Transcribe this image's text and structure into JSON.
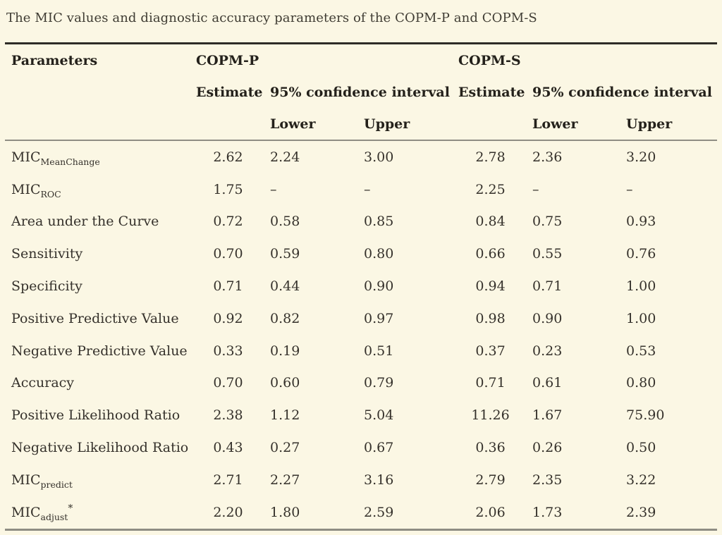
{
  "title": "The MIC values and diagnostic accuracy parameters of the COPM-P and COPM-S",
  "table": {
    "header": {
      "parameters": "Parameters",
      "group_p": "COPM-P",
      "group_s": "COPM-S",
      "estimate": "Estimate",
      "ci": "95% confidence interval",
      "lower": "Lower",
      "upper": "Upper"
    },
    "rows": [
      {
        "param": {
          "base": "MIC",
          "sub": "MeanChange",
          "sup": ""
        },
        "values": [
          "2.62",
          "2.24",
          "3.00",
          "2.78",
          "2.36",
          "3.20"
        ]
      },
      {
        "param": {
          "base": "MIC",
          "sub": "ROC",
          "sup": ""
        },
        "values": [
          "1.75",
          "–",
          "–",
          "2.25",
          "–",
          "–"
        ]
      },
      {
        "param": {
          "base": "Area under the Curve",
          "sub": "",
          "sup": ""
        },
        "values": [
          "0.72",
          "0.58",
          "0.85",
          "0.84",
          "0.75",
          "0.93"
        ]
      },
      {
        "param": {
          "base": "Sensitivity",
          "sub": "",
          "sup": ""
        },
        "values": [
          "0.70",
          "0.59",
          "0.80",
          "0.66",
          "0.55",
          "0.76"
        ]
      },
      {
        "param": {
          "base": "Specificity",
          "sub": "",
          "sup": ""
        },
        "values": [
          "0.71",
          "0.44",
          "0.90",
          "0.94",
          "0.71",
          "1.00"
        ]
      },
      {
        "param": {
          "base": "Positive Predictive Value",
          "sub": "",
          "sup": ""
        },
        "values": [
          "0.92",
          "0.82",
          "0.97",
          "0.98",
          "0.90",
          "1.00"
        ]
      },
      {
        "param": {
          "base": "Negative Predictive Value",
          "sub": "",
          "sup": ""
        },
        "values": [
          "0.33",
          "0.19",
          "0.51",
          "0.37",
          "0.23",
          "0.53"
        ]
      },
      {
        "param": {
          "base": "Accuracy",
          "sub": "",
          "sup": ""
        },
        "values": [
          "0.70",
          "0.60",
          "0.79",
          "0.71",
          "0.61",
          "0.80"
        ]
      },
      {
        "param": {
          "base": "Positive Likelihood Ratio",
          "sub": "",
          "sup": ""
        },
        "values": [
          "2.38",
          "1.12",
          "5.04",
          "11.26",
          "1.67",
          "75.90"
        ]
      },
      {
        "param": {
          "base": "Negative Likelihood Ratio",
          "sub": "",
          "sup": ""
        },
        "values": [
          "0.43",
          "0.27",
          "0.67",
          "0.36",
          "0.26",
          "0.50"
        ]
      },
      {
        "param": {
          "base": "MIC",
          "sub": "predict",
          "sup": ""
        },
        "values": [
          "2.71",
          "2.27",
          "3.16",
          "2.79",
          "2.35",
          "3.22"
        ]
      },
      {
        "param": {
          "base": "MIC",
          "sub": "adjust",
          "sup": "*"
        },
        "values": [
          "2.20",
          "1.80",
          "2.59",
          "2.06",
          "1.73",
          "2.39"
        ]
      }
    ]
  }
}
